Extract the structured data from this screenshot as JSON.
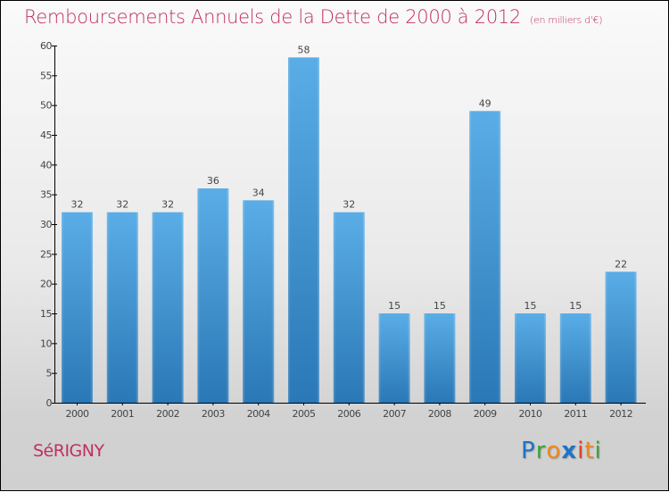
{
  "town": "SéRIGNY",
  "logo": {
    "letters": [
      {
        "char": "P",
        "color": "#1e73c8"
      },
      {
        "char": "r",
        "color": "#3aa53a"
      },
      {
        "char": "o",
        "color": "#f08a1c"
      },
      {
        "char": "x",
        "color": "#1e73c8"
      },
      {
        "char": "i",
        "color": "#e23c2b"
      },
      {
        "char": "t",
        "color": "#f08a1c"
      },
      {
        "char": "i",
        "color": "#3aa53a"
      }
    ]
  },
  "colors": {
    "title": "#c0305e",
    "bar_top": "#5aade6",
    "bar_bottom": "#2a78b6",
    "axis": "#000000",
    "label": "#444444"
  },
  "chart_data": {
    "type": "bar",
    "title": "Remboursements Annuels de la Dette de 2000 à 2012",
    "subtitle": "(en milliers d'€)",
    "xlabel": "",
    "ylabel": "",
    "categories": [
      "2000",
      "2001",
      "2002",
      "2003",
      "2004",
      "2005",
      "2006",
      "2007",
      "2008",
      "2009",
      "2010",
      "2011",
      "2012"
    ],
    "values": [
      32,
      32,
      32,
      36,
      34,
      58,
      32,
      15,
      15,
      49,
      15,
      15,
      22
    ],
    "data_labels": [
      "32",
      "32",
      "32",
      "36",
      "34",
      "58",
      "32",
      "15",
      "15",
      "49",
      "15",
      "15",
      "22"
    ],
    "ylim": [
      0,
      60
    ],
    "yticks": [
      0,
      5,
      10,
      15,
      20,
      25,
      30,
      35,
      40,
      45,
      50,
      55,
      60
    ],
    "grid": false,
    "legend": "none"
  }
}
